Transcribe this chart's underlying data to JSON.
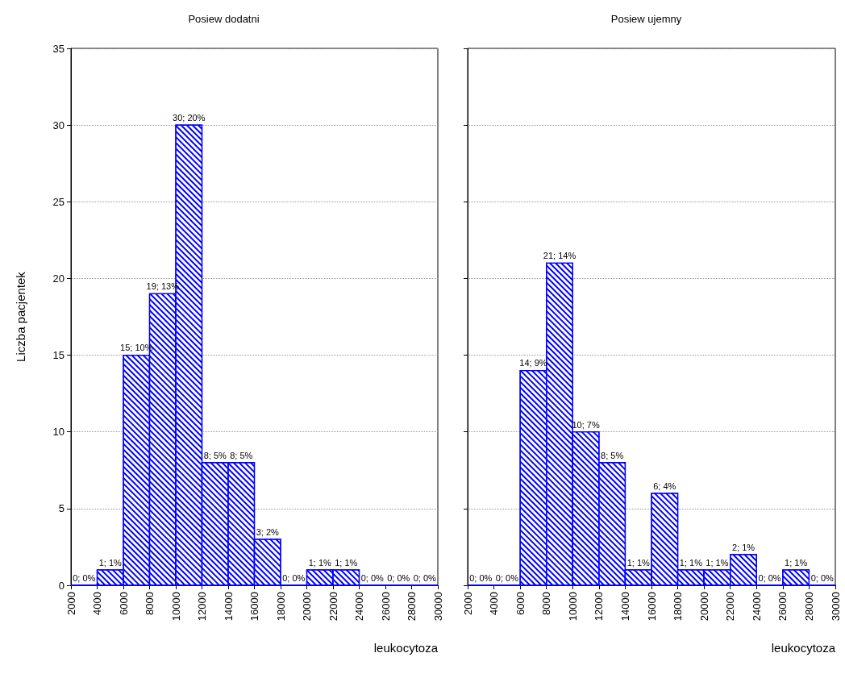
{
  "chart_data": [
    {
      "type": "histogram",
      "title": "Posiew dodatni",
      "xlabel": "leukocytoza",
      "ylabel": "Liczba pacjentek",
      "color": "#0000ff",
      "bins": [
        2000,
        4000,
        6000,
        8000,
        10000,
        12000,
        14000,
        16000,
        18000,
        20000,
        22000,
        24000,
        26000,
        28000,
        30000
      ],
      "values": [
        0,
        1,
        15,
        19,
        30,
        8,
        8,
        3,
        0,
        1,
        1,
        0,
        0,
        0
      ],
      "value_labels": [
        "0; 0%",
        "1; 1%",
        "15; 10%",
        "19; 13%",
        "30; 20%",
        "8; 5%",
        "8; 5%",
        "3; 2%",
        "0; 0%",
        "1; 1%",
        "1; 1%",
        "0; 0%",
        "0; 0%",
        "0; 0%"
      ],
      "xlim": [
        2000,
        30000
      ],
      "xticks": [
        2000,
        4000,
        6000,
        8000,
        10000,
        12000,
        14000,
        16000,
        18000,
        20000,
        22000,
        24000,
        26000,
        28000,
        30000
      ],
      "ylim": [
        0,
        35
      ],
      "yticks": [
        0,
        5,
        10,
        15,
        20,
        25,
        30,
        35
      ],
      "grid": "y"
    },
    {
      "type": "histogram",
      "title": "Posiew ujemny",
      "xlabel": "leukocytoza",
      "color": "#0000ff",
      "bins": [
        2000,
        4000,
        6000,
        8000,
        10000,
        12000,
        14000,
        16000,
        18000,
        20000,
        22000,
        24000,
        26000,
        28000,
        30000
      ],
      "values": [
        0,
        0,
        14,
        21,
        10,
        8,
        1,
        6,
        1,
        1,
        2,
        0,
        1,
        0
      ],
      "value_labels": [
        "0; 0%",
        "0; 0%",
        "14; 9%",
        "21; 14%",
        "10; 7%",
        "8; 5%",
        "1; 1%",
        "6; 4%",
        "1; 1%",
        "1; 1%",
        "2; 1%",
        "0; 0%",
        "1; 1%",
        "0; 0%"
      ],
      "xlim": [
        2000,
        30000
      ],
      "xticks": [
        2000,
        4000,
        6000,
        8000,
        10000,
        12000,
        14000,
        16000,
        18000,
        20000,
        22000,
        24000,
        26000,
        28000,
        30000
      ],
      "ylim": [
        0,
        35
      ],
      "yticks": [
        0,
        5,
        10,
        15,
        20,
        25,
        30,
        35
      ],
      "grid": "y",
      "tick_labels": "x"
    }
  ]
}
